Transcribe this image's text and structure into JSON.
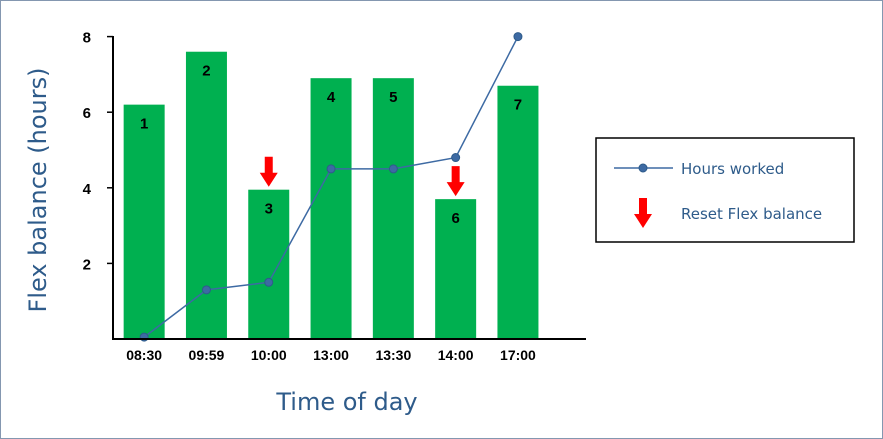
{
  "chart_data": {
    "type": "bar",
    "categories": [
      "08:30",
      "09:59",
      "10:00",
      "13:00",
      "13:30",
      "14:00",
      "17:00"
    ],
    "bar_values": [
      6.2,
      7.6,
      3.95,
      6.9,
      6.9,
      3.7,
      6.7
    ],
    "bar_labels": [
      "1",
      "2",
      "3",
      "4",
      "5",
      "6",
      "7"
    ],
    "bar_color": "#00b050",
    "series": [
      {
        "name": "Hours worked",
        "type": "line",
        "values": [
          0.05,
          1.3,
          1.5,
          4.5,
          4.5,
          4.8,
          8.0
        ],
        "color": "#3d6aa3"
      }
    ],
    "reset_markers": [
      2,
      5
    ],
    "reset_color": "#ff0000",
    "xlabel": "Time of day",
    "ylabel": "Flex balance (hours)",
    "ylim": [
      0,
      8
    ],
    "yticks": [
      "2",
      "4",
      "6",
      "8"
    ],
    "grid": false,
    "legend": {
      "position": "right",
      "items": [
        {
          "label": "Hours worked",
          "symbol": "line-marker"
        },
        {
          "label": "Reset Flex balance",
          "symbol": "down-arrow"
        }
      ]
    }
  }
}
